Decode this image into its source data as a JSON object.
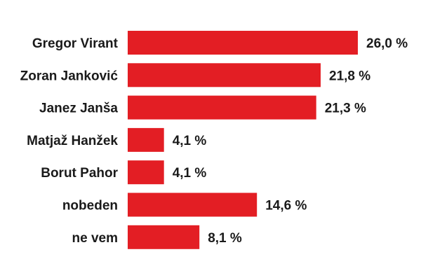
{
  "chart_data": {
    "type": "bar",
    "orientation": "horizontal",
    "categories": [
      "Gregor Virant",
      "Zoran Janković",
      "Janez Janša",
      "Matjaž Hanžek",
      "Borut Pahor",
      "nobeden",
      "ne vem"
    ],
    "values": [
      26.0,
      21.8,
      21.3,
      4.1,
      4.1,
      14.6,
      8.1
    ],
    "value_labels": [
      "26,0 %",
      "21,8 %",
      "21,3 %",
      "4,1 %",
      "4,1 %",
      "14,6 %",
      "8,1 %"
    ],
    "xlim": [
      0,
      26.0
    ],
    "grid": false,
    "legend": "none",
    "bar_color": "#e31e24"
  }
}
